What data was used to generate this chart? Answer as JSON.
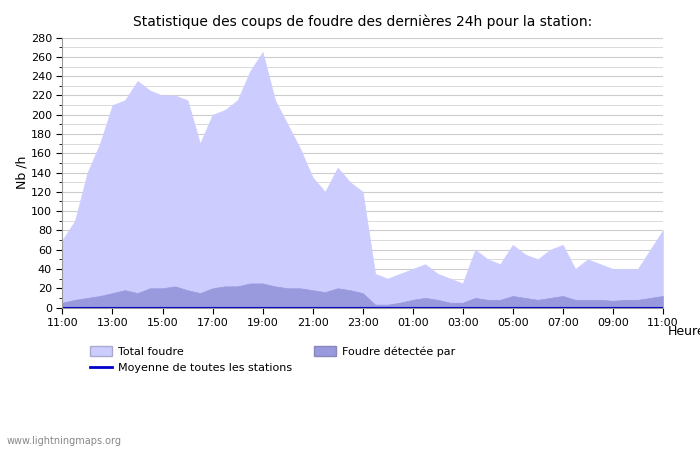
{
  "title": "Statistique des coups de foudre des dernières 24h pour la station:",
  "xlabel": "Heure",
  "ylabel": "Nb /h",
  "xlim": [
    0,
    24
  ],
  "ylim": [
    0,
    280
  ],
  "yticks": [
    0,
    20,
    40,
    60,
    80,
    100,
    120,
    140,
    160,
    180,
    200,
    220,
    240,
    260,
    280
  ],
  "xtick_labels": [
    "11:00",
    "13:00",
    "15:00",
    "17:00",
    "19:00",
    "21:00",
    "23:00",
    "01:00",
    "03:00",
    "05:00",
    "07:00",
    "09:00",
    "11:00"
  ],
  "color_total": "#ccccff",
  "color_detected": "#9999dd",
  "color_moyenne": "#0000cc",
  "watermark": "www.lightningmaps.org",
  "legend_total": "Total foudre",
  "legend_detected": "Foudre détectée par",
  "legend_moyenne": "Moyenne de toutes les stations",
  "x": [
    0,
    0.5,
    1,
    1.5,
    2,
    2.5,
    3,
    3.5,
    4,
    4.5,
    5,
    5.5,
    6,
    6.5,
    7,
    7.5,
    8,
    8.5,
    9,
    9.5,
    10,
    10.5,
    11,
    11.5,
    12,
    12.5,
    13,
    13.5,
    14,
    14.5,
    15,
    15.5,
    16,
    16.5,
    17,
    17.5,
    18,
    18.5,
    19,
    19.5,
    20,
    20.5,
    21,
    21.5,
    22,
    22.5,
    23,
    23.5,
    24
  ],
  "total_foudre": [
    70,
    90,
    140,
    170,
    210,
    215,
    235,
    225,
    220,
    220,
    215,
    170,
    200,
    205,
    215,
    245,
    265,
    215,
    190,
    165,
    135,
    120,
    145,
    130,
    120,
    35,
    30,
    35,
    40,
    45,
    35,
    30,
    25,
    60,
    50,
    45,
    65,
    55,
    50,
    60,
    65,
    40,
    50,
    45,
    40,
    40,
    40,
    60,
    80
  ],
  "foudre_detectee": [
    5,
    8,
    10,
    12,
    15,
    18,
    15,
    20,
    20,
    22,
    18,
    15,
    20,
    22,
    22,
    25,
    25,
    22,
    20,
    20,
    18,
    16,
    20,
    18,
    15,
    3,
    3,
    5,
    8,
    10,
    8,
    5,
    5,
    10,
    8,
    8,
    12,
    10,
    8,
    10,
    12,
    8,
    8,
    8,
    7,
    8,
    8,
    10,
    12
  ],
  "moyenne": [
    0,
    0,
    0,
    0,
    0,
    0,
    0,
    0,
    0,
    0,
    0,
    0,
    0,
    0,
    0,
    0,
    0,
    0,
    0,
    0,
    0,
    0,
    0,
    0,
    0,
    0,
    0,
    0,
    0,
    0,
    0,
    0,
    0,
    0,
    0,
    0,
    0,
    0,
    0,
    0,
    0,
    0,
    0,
    0,
    0,
    0,
    0,
    0,
    0
  ]
}
